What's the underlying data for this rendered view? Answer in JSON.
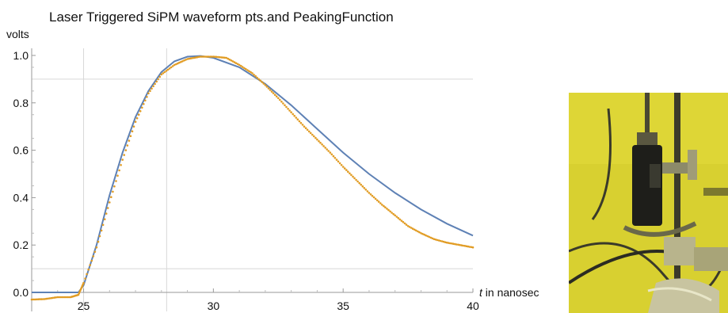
{
  "chart_data": {
    "type": "line",
    "title": "Laser Triggered SiPM waveform pts.and PeakingFunction",
    "ylabel": "volts",
    "xlabel_var": "t",
    "xlabel_rest": " in nanosec",
    "xlim": [
      23,
      40
    ],
    "ylim": [
      -0.03,
      1.03
    ],
    "x_ticks": [
      25,
      30,
      35,
      40
    ],
    "y_ticks": [
      0.0,
      0.2,
      0.4,
      0.6,
      0.8,
      1.0
    ],
    "x_tick_labels": [
      "25",
      "30",
      "35",
      "40"
    ],
    "y_tick_labels": [
      "0.0",
      "0.2",
      "0.4",
      "0.6",
      "0.8",
      "1.0"
    ],
    "gridlines": {
      "x": [
        25,
        28.2
      ],
      "y": [
        0.1,
        0.9
      ]
    },
    "series": [
      {
        "kind": "line",
        "color": "#5e81b5",
        "x": [
          23,
          24,
          24.8,
          25,
          25.5,
          26,
          26.5,
          27,
          27.5,
          28,
          28.5,
          29,
          29.5,
          30,
          31,
          32,
          33,
          34,
          35,
          36,
          37,
          38,
          39,
          40
        ],
        "y": [
          0.0,
          0.0,
          0.0,
          0.03,
          0.2,
          0.41,
          0.59,
          0.74,
          0.85,
          0.93,
          0.975,
          0.995,
          0.998,
          0.99,
          0.95,
          0.88,
          0.79,
          0.69,
          0.59,
          0.5,
          0.42,
          0.35,
          0.29,
          0.24
        ]
      },
      {
        "kind": "points",
        "color": "#e19c24",
        "x": [
          23,
          23.5,
          24,
          24.5,
          24.8,
          25,
          25.5,
          26,
          26.5,
          27,
          27.5,
          28,
          28.5,
          29,
          29.5,
          30,
          30.5,
          31,
          31.5,
          32,
          32.5,
          33,
          33.5,
          34,
          34.5,
          35,
          35.5,
          36,
          36.5,
          37,
          37.5,
          38,
          38.5,
          39,
          39.5,
          40
        ],
        "y": [
          -0.03,
          -0.028,
          -0.02,
          -0.02,
          -0.01,
          0.04,
          0.19,
          0.38,
          0.56,
          0.72,
          0.84,
          0.92,
          0.96,
          0.985,
          0.995,
          0.995,
          0.99,
          0.96,
          0.925,
          0.875,
          0.82,
          0.76,
          0.7,
          0.645,
          0.59,
          0.53,
          0.475,
          0.42,
          0.37,
          0.325,
          0.28,
          0.25,
          0.225,
          0.21,
          0.2,
          0.19
        ]
      }
    ]
  },
  "photo": {
    "icon": "sipm-photo-icon",
    "bg_color": "#d8d030"
  }
}
